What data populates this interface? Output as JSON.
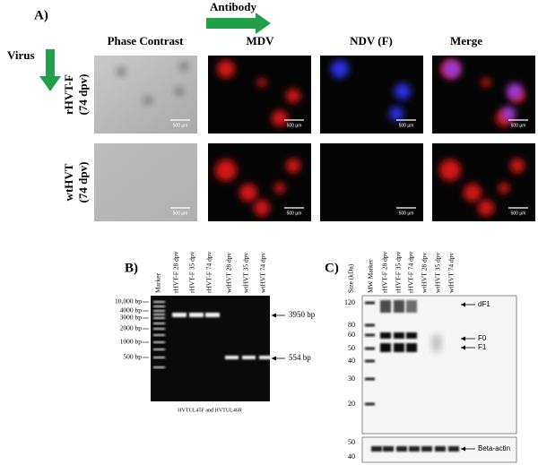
{
  "panel_a": {
    "label": "A)",
    "antibody": "Antibody",
    "virus": "Virus",
    "columns": [
      "Phase Contrast",
      "MDV",
      "NDV (F)",
      "Merge"
    ],
    "rows": [
      {
        "name": "rHVT-F",
        "dpv": "(74 dpv)"
      },
      {
        "name": "wtHVT",
        "dpv": "(74 dpv)"
      }
    ],
    "scale_bar": "500 µm"
  },
  "panel_b": {
    "label": "B)",
    "lanes": [
      "Marker",
      "rHVT-F 28 dpv",
      "rHVT-F 35 dpv",
      "rHVT-F 74 dpv",
      "wtHVT 28 dpv",
      "wtHVT 35 dpv",
      "wtHVT 74 dpv"
    ],
    "ladder": [
      "10,000 bp",
      "4000 bp",
      "3000 bp",
      "2000 bp",
      "1000 bp",
      "500 bp"
    ],
    "bands": [
      "3950 bp",
      "554 bp"
    ],
    "caption": "HVTUL45F and HVTUL46R"
  },
  "panel_c": {
    "label": "C)",
    "size_label": "Size (kDa)",
    "lanes": [
      "MW Marker",
      "rHVT-F 28 dpv",
      "rHVT-F 35 dpv",
      "rHVT-F 74 dpv",
      "wtHVT 28 dpv",
      "wtHVT 35 dpv",
      "wtHVT 74 dpv"
    ],
    "markers": [
      "120",
      "80",
      "60",
      "50",
      "40",
      "30",
      "20"
    ],
    "lower_markers": [
      "50",
      "40"
    ],
    "bands": [
      "dF1",
      "F0",
      "F1",
      "Beta-actin"
    ]
  }
}
